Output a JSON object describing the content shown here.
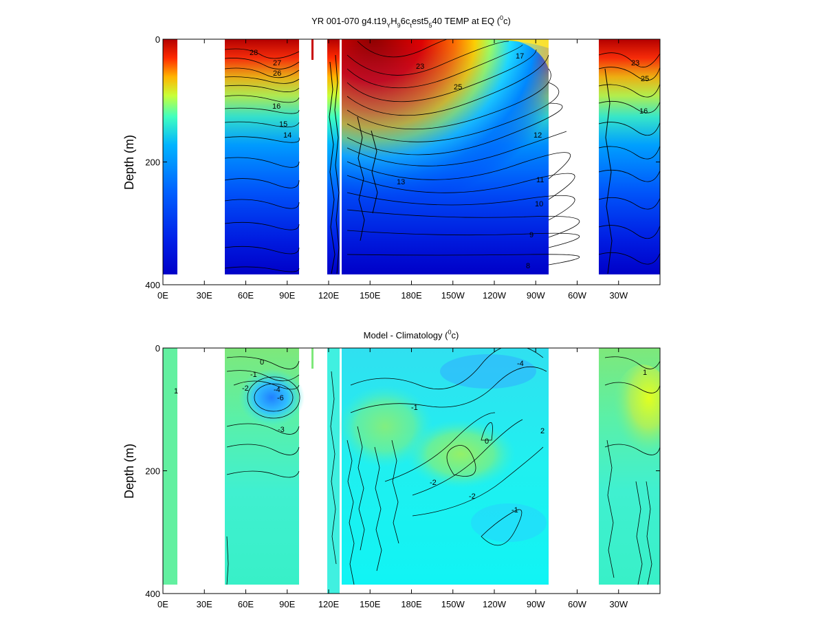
{
  "chart_data": [
    {
      "type": "heatmap",
      "title_prefix": "YR 001-070 g4.t19",
      "title_sub1": "Y",
      "title_mid1": "H",
      "title_sub2": "9",
      "title_mid2": "6c",
      "title_sub3": "t",
      "title_mid3": "est5",
      "title_sub4": "5",
      "title_mid4": "40 TEMP at EQ (",
      "title_sup": "0",
      "title_end": "c)",
      "ylabel": "Depth (m)",
      "ylim": [
        0,
        400
      ],
      "yticks": [
        "0",
        "200",
        "400"
      ],
      "xticks": [
        "0E",
        "30E",
        "60E",
        "90E",
        "120E",
        "150E",
        "180E",
        "150W",
        "120W",
        "90W",
        "60W",
        "30W"
      ],
      "contour_labels": [
        "28",
        "27",
        "26",
        "23",
        "25",
        "17",
        "16",
        "15",
        "14",
        "13",
        "12",
        "11",
        "10",
        "9",
        "8",
        "23",
        "25",
        "16"
      ]
    },
    {
      "type": "heatmap",
      "title_main": "Model - Climatology (",
      "title_sup": "0",
      "title_end": "c)",
      "ylabel": "Depth (m)",
      "ylim": [
        0,
        400
      ],
      "yticks": [
        "0",
        "200",
        "400"
      ],
      "xticks": [
        "0E",
        "30E",
        "60E",
        "90E",
        "120E",
        "150E",
        "180E",
        "150W",
        "120W",
        "90W",
        "60W",
        "30W"
      ],
      "contour_labels": [
        "0",
        "-1",
        "-2",
        "-3",
        "-4",
        "-6",
        "1",
        "2",
        "-4",
        "-2",
        "0",
        "-1",
        "1",
        "-2",
        "-1"
      ]
    }
  ]
}
